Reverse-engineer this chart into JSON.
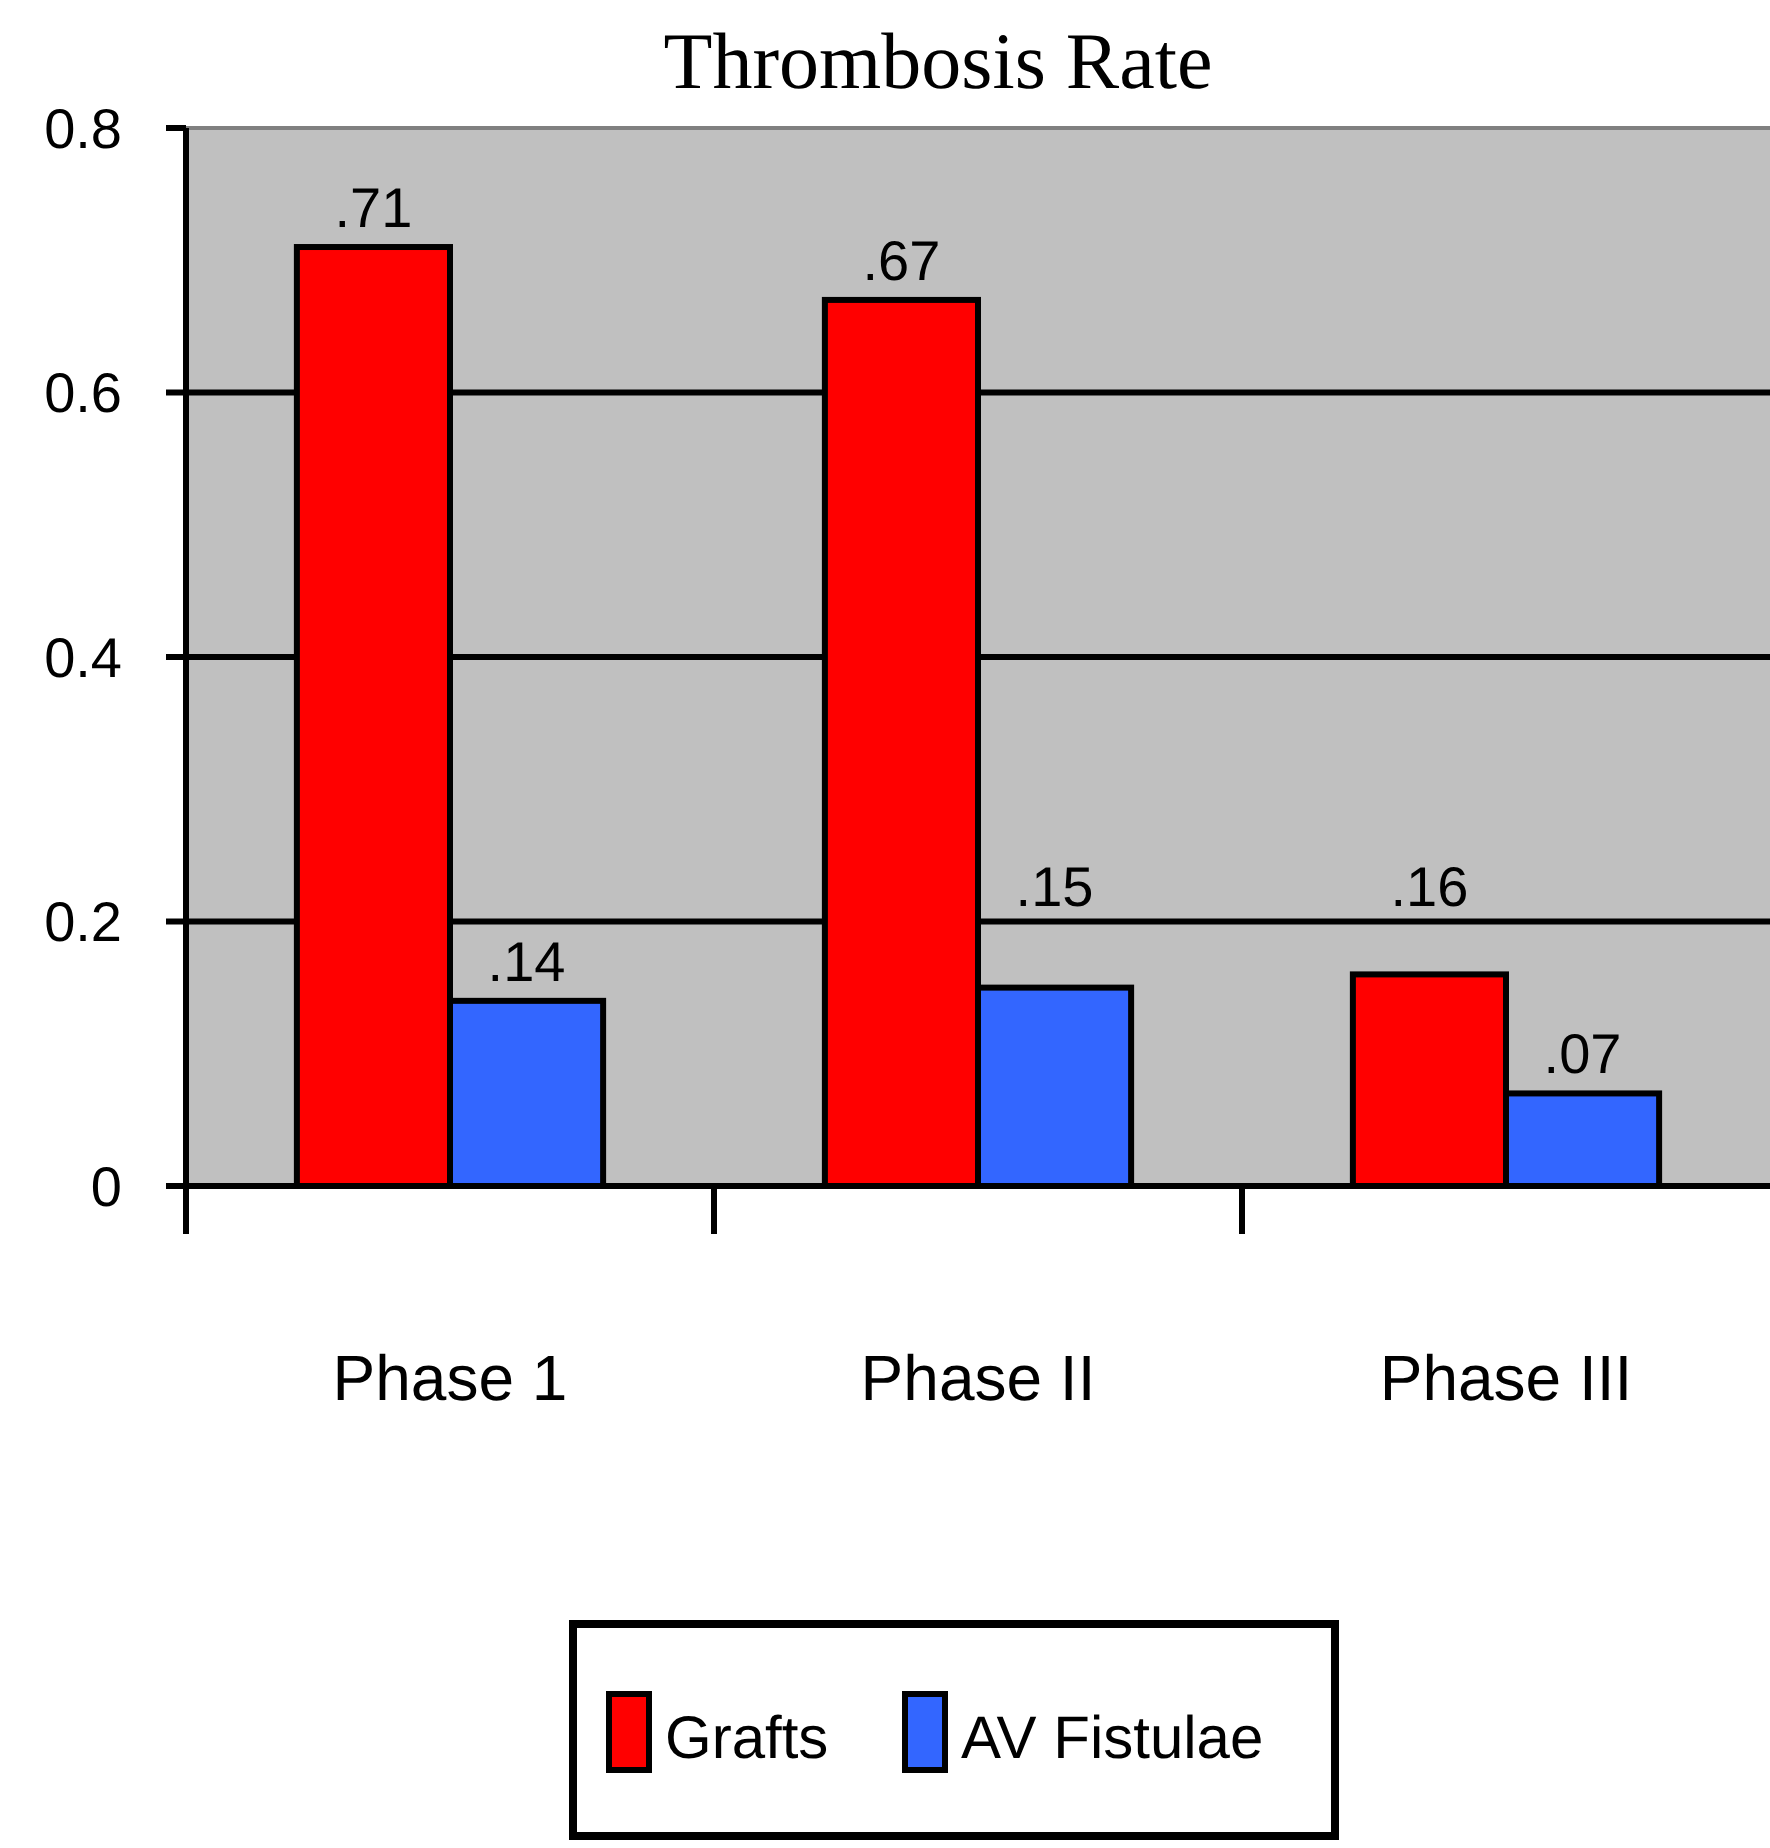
{
  "chart_data": {
    "type": "bar",
    "title": "Thrombosis Rate",
    "categories": [
      "Phase 1",
      "Phase II",
      "Phase III"
    ],
    "series": [
      {
        "name": "Grafts",
        "color": "#ff0000",
        "values": [
          0.71,
          0.67,
          0.16
        ],
        "value_labels": [
          ".71",
          ".67",
          ".16"
        ]
      },
      {
        "name": "AV Fistulae",
        "color": "#3366ff",
        "values": [
          0.14,
          0.15,
          0.07
        ],
        "value_labels": [
          ".14",
          ".15",
          ".07"
        ]
      }
    ],
    "ylim": [
      0,
      0.8
    ],
    "yticks": [
      0,
      0.2,
      0.4,
      0.6,
      0.8
    ],
    "grid": "y",
    "legend": "bottom"
  }
}
